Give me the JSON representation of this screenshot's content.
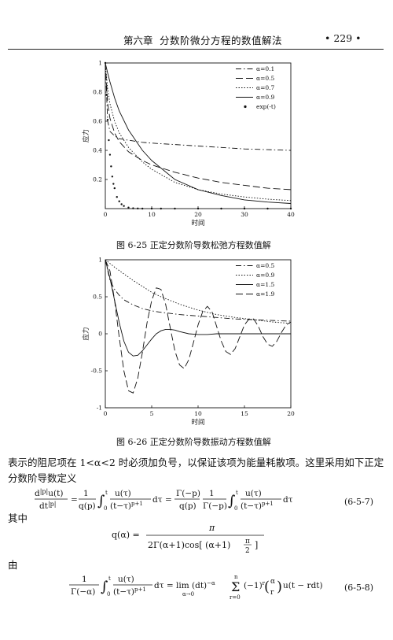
{
  "header": {
    "chapter": "第六章",
    "chapter_title": "分数阶微分方程的数值解法",
    "page_number": "• 229 •"
  },
  "chart_data": [
    {
      "type": "line",
      "caption": "图 6-25    正定分数阶导数松弛方程数值解",
      "xlabel": "时间",
      "ylabel": "应力",
      "xlim": [
        0,
        40
      ],
      "ylim": [
        0,
        1
      ],
      "xticks": [
        "0",
        "10",
        "20",
        "30",
        "40"
      ],
      "yticks": [
        "0.2",
        "0.4",
        "0.6",
        "0.8",
        "1"
      ],
      "legend": "top-right",
      "series": [
        {
          "name": "α=0.1",
          "style": "dashdot",
          "x": [
            0,
            0.5,
            1,
            2,
            3,
            5,
            8,
            10,
            15,
            20,
            25,
            30,
            35,
            40
          ],
          "y": [
            1,
            0.6,
            0.53,
            0.5,
            0.48,
            0.47,
            0.455,
            0.45,
            0.44,
            0.43,
            0.42,
            0.41,
            0.405,
            0.4
          ]
        },
        {
          "name": "α=0.5",
          "style": "longdash",
          "x": [
            0,
            0.5,
            1,
            2,
            3,
            5,
            8,
            10,
            15,
            20,
            25,
            30,
            35,
            40
          ],
          "y": [
            1,
            0.72,
            0.62,
            0.52,
            0.46,
            0.39,
            0.33,
            0.3,
            0.25,
            0.21,
            0.18,
            0.16,
            0.14,
            0.13
          ]
        },
        {
          "name": "α=0.7",
          "style": "dotted",
          "x": [
            0,
            0.5,
            1,
            2,
            3,
            5,
            8,
            10,
            15,
            20,
            25,
            30,
            35,
            40
          ],
          "y": [
            1,
            0.82,
            0.72,
            0.6,
            0.52,
            0.42,
            0.32,
            0.27,
            0.18,
            0.13,
            0.1,
            0.08,
            0.065,
            0.055
          ]
        },
        {
          "name": "α=0.9",
          "style": "solid",
          "x": [
            0,
            0.5,
            1,
            2,
            3,
            5,
            8,
            10,
            15,
            20,
            25,
            30,
            35,
            40
          ],
          "y": [
            1,
            0.93,
            0.87,
            0.76,
            0.67,
            0.54,
            0.4,
            0.33,
            0.2,
            0.13,
            0.09,
            0.06,
            0.045,
            0.035
          ]
        },
        {
          "name": "exp(-t)",
          "style": "points",
          "x": [
            0,
            0.25,
            0.5,
            0.75,
            1,
            1.25,
            1.5,
            1.75,
            2,
            2.5,
            3,
            3.5,
            4,
            5,
            6,
            7,
            8,
            10,
            12,
            15,
            20,
            25,
            30,
            35,
            40
          ],
          "y": [
            1,
            0.78,
            0.61,
            0.47,
            0.37,
            0.29,
            0.22,
            0.17,
            0.14,
            0.08,
            0.05,
            0.03,
            0.018,
            0.007,
            0.002,
            0.001,
            0,
            0,
            0,
            0,
            0,
            0,
            0,
            0,
            0
          ]
        }
      ]
    },
    {
      "type": "line",
      "caption": "图 6-26    正定分数阶导数振动方程数值解",
      "xlabel": "时间",
      "ylabel": "应力",
      "xlim": [
        0,
        20
      ],
      "ylim": [
        -1,
        1
      ],
      "xticks": [
        "0",
        "5",
        "10",
        "15",
        "20"
      ],
      "yticks": [
        "-1",
        "-0.5",
        "0",
        "0.5",
        "1"
      ],
      "legend": "top-right",
      "series": [
        {
          "name": "α=0.5",
          "style": "dashdot",
          "x": [
            0,
            0.5,
            1,
            1.5,
            2,
            3,
            4,
            5,
            6,
            8,
            10,
            12,
            14,
            16,
            18,
            20
          ],
          "y": [
            1,
            0.72,
            0.6,
            0.52,
            0.46,
            0.39,
            0.34,
            0.31,
            0.29,
            0.26,
            0.24,
            0.22,
            0.2,
            0.19,
            0.18,
            0.17
          ]
        },
        {
          "name": "α=0.9",
          "style": "dotted",
          "x": [
            0,
            0.5,
            1,
            2,
            3,
            4,
            5,
            6,
            8,
            10,
            12,
            14,
            16,
            18,
            20
          ],
          "y": [
            1,
            0.95,
            0.9,
            0.81,
            0.72,
            0.64,
            0.56,
            0.5,
            0.4,
            0.32,
            0.26,
            0.22,
            0.19,
            0.16,
            0.14
          ]
        },
        {
          "name": "α=1.5",
          "style": "solid",
          "x": [
            0,
            0.5,
            1,
            1.5,
            2,
            2.5,
            3,
            3.5,
            4,
            4.5,
            5,
            5.5,
            6,
            6.5,
            7,
            7.5,
            8,
            9,
            10,
            11,
            12,
            13,
            14,
            16,
            18,
            20
          ],
          "y": [
            1,
            0.75,
            0.45,
            0.15,
            -0.1,
            -0.25,
            -0.3,
            -0.29,
            -0.23,
            -0.15,
            -0.07,
            0,
            0.04,
            0.06,
            0.06,
            0.05,
            0.03,
            0,
            -0.01,
            -0.01,
            0,
            0,
            0,
            0,
            0,
            0
          ]
        },
        {
          "name": "α=1.9",
          "style": "longdash",
          "x": [
            0,
            0.5,
            1,
            1.5,
            2,
            2.5,
            3,
            3.5,
            4,
            4.5,
            5,
            5.5,
            6,
            6.5,
            7,
            7.5,
            8,
            8.5,
            9,
            9.5,
            10,
            10.5,
            11,
            11.5,
            12,
            12.5,
            13,
            13.5,
            14,
            14.5,
            15,
            15.5,
            16,
            16.5,
            17,
            17.5,
            18,
            18.5,
            19,
            19.5,
            20
          ],
          "y": [
            1,
            0.85,
            0.45,
            -0.05,
            -0.5,
            -0.77,
            -0.8,
            -0.6,
            -0.25,
            0.15,
            0.45,
            0.62,
            0.6,
            0.4,
            0.08,
            -0.23,
            -0.42,
            -0.47,
            -0.35,
            -0.12,
            0.12,
            0.3,
            0.37,
            0.3,
            0.1,
            -0.1,
            -0.24,
            -0.28,
            -0.2,
            -0.04,
            0.12,
            0.2,
            0.2,
            0.1,
            -0.04,
            -0.14,
            -0.17,
            -0.1,
            0.02,
            0.12,
            0.16
          ]
        }
      ]
    }
  ],
  "body": {
    "para1_line1": "表示的阻尼项在 1<α<2 时必须加负号，以保证该项为能量耗散项。这里采用如下正定",
    "para1_line2": "分数阶导数定义",
    "eq1": "d|p|u(t)/dt|p| = 1/q(p) ∫₀ᵗ u(τ)/(t−τ)^(p+1) dτ = Γ(−p)/q(p) · 1/Γ(−p) ∫₀ᵗ u(τ)/(t−τ)^(p+1) dτ",
    "eq1_number": "(6-5-7)",
    "where": "其中",
    "eq2": "q(α) = π / ( 2Γ(α+1) cos[ (α+1) π/2 ] )",
    "by": "由",
    "eq3": "1/Γ(−α) ∫₀ᵗ u(τ)/(t−τ)^(p+1) dτ = lim(α→0) (dt)^(−α) Σ(r=0..n) (−1)^r (α r) u(t − rdt)",
    "eq3_number": "(6-5-8)"
  }
}
